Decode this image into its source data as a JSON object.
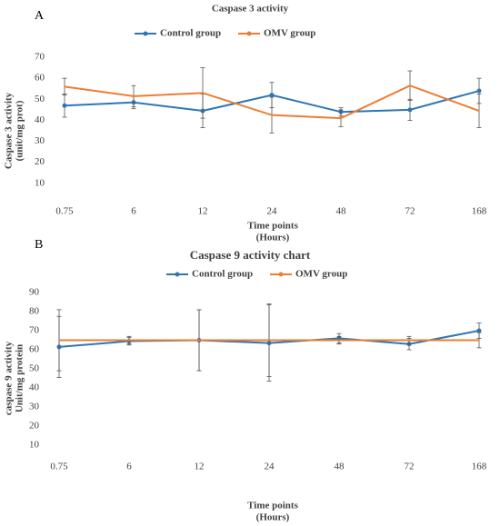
{
  "chart_data": [
    {
      "type": "line",
      "panel_label": "A",
      "title": "Caspase 3 activity",
      "ylabel": [
        "Caspase 3 activity",
        "(unit/mg prot)"
      ],
      "xlabel": [
        "Time points",
        "(Hours)"
      ],
      "categories": [
        "0.75",
        "6",
        "12",
        "24",
        "48",
        "72",
        "168"
      ],
      "series": [
        {
          "name": "Control group",
          "color": "#2e75b6",
          "values": [
            47,
            48.5,
            44.5,
            52,
            44,
            45,
            54
          ],
          "errors": [
            5.5,
            3,
            8,
            6,
            2,
            5,
            6
          ]
        },
        {
          "name": "OMV group",
          "color": "#ed7d31",
          "values": [
            56,
            51.5,
            53,
            42.5,
            41,
            56.5,
            44.5
          ],
          "errors": [
            4,
            5,
            12,
            8.5,
            4,
            7,
            8
          ]
        }
      ],
      "ylim": [
        0,
        70
      ],
      "yticks": [
        10,
        20,
        30,
        40,
        50,
        60,
        70
      ],
      "legend": "top",
      "grid": false
    },
    {
      "type": "line",
      "panel_label": "B",
      "title": "Caspase 9 activity chart",
      "ylabel": [
        "caspase 9 activity",
        "Unit/mg protein"
      ],
      "xlabel": [
        "Time points",
        "(Hours)"
      ],
      "categories": [
        "0.75",
        "6",
        "12",
        "24",
        "48",
        "72",
        "168"
      ],
      "series": [
        {
          "name": "Control group",
          "color": "#2e75b6",
          "values": [
            61.5,
            64.5,
            65,
            63.5,
            66,
            63,
            70
          ],
          "errors": [
            16,
            2,
            16,
            20,
            2.5,
            3,
            4
          ]
        },
        {
          "name": "OMV group",
          "color": "#ed7d31",
          "values": [
            65,
            65,
            65,
            65,
            65,
            65,
            65
          ],
          "errors": [
            16,
            2,
            16,
            19,
            2,
            2,
            4
          ]
        }
      ],
      "ylim": [
        0,
        90
      ],
      "yticks": [
        10,
        20,
        30,
        40,
        50,
        60,
        70,
        80,
        90
      ],
      "legend": "top",
      "grid": false
    }
  ]
}
